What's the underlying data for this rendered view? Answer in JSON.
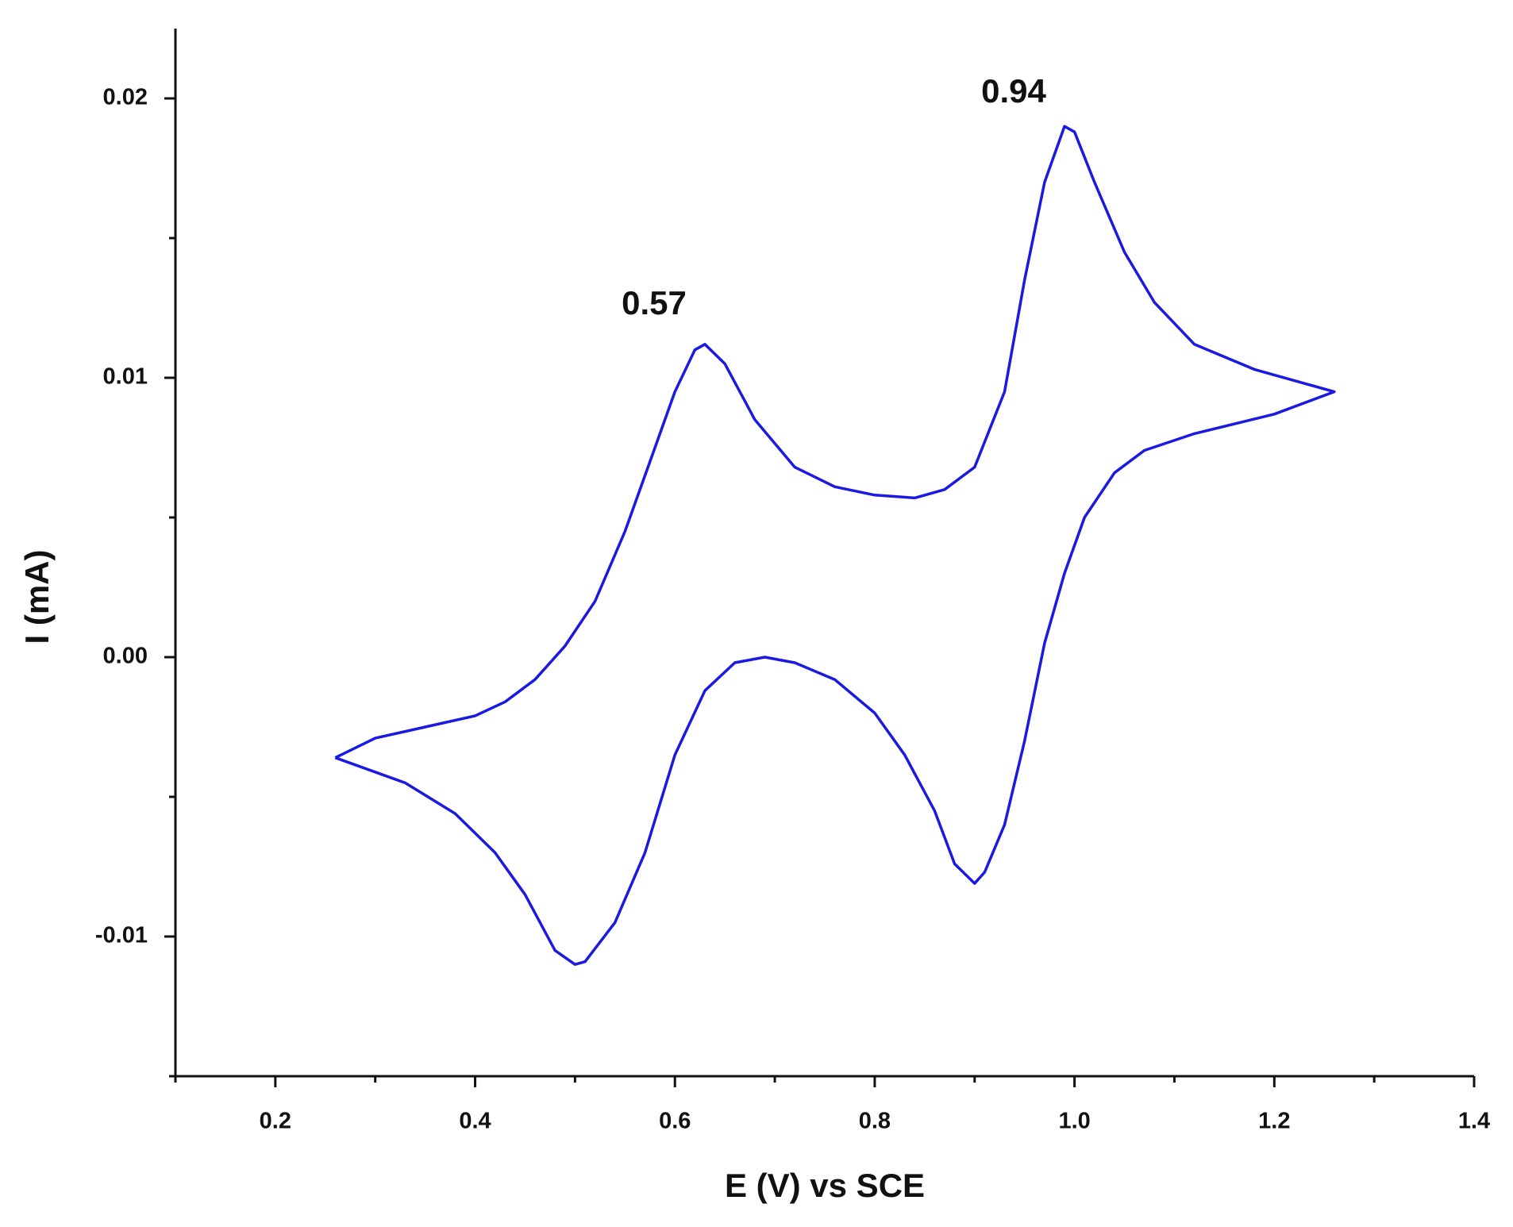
{
  "chart_data": {
    "type": "line",
    "xlabel": "E (V) vs SCE",
    "ylabel": "I (mA)",
    "annotations": [
      "0.57",
      "0.94"
    ],
    "xlim": [
      0.1,
      1.4
    ],
    "ylim": [
      -0.015,
      0.0225
    ],
    "xticks": [
      0.2,
      0.4,
      0.6,
      0.8,
      {
        "value": 1.0,
        "label": "1.0"
      },
      1.2,
      1.4
    ],
    "yticks": [
      -0.01,
      {
        "value": 0,
        "label": "0.00"
      },
      0.01,
      0.02
    ],
    "xminorticks": [
      0.1,
      0.3,
      0.5,
      0.7,
      0.9,
      1.1,
      1.3
    ],
    "yminorticks": [
      -0.015,
      -0.005,
      0.005,
      0.015
    ],
    "series": [
      {
        "color": "#1a1ae0",
        "x": [
          0.26,
          0.3,
          0.35,
          0.4,
          0.43,
          0.46,
          0.49,
          0.52,
          0.55,
          0.58,
          0.6,
          0.62,
          0.63,
          0.65,
          0.68,
          0.72,
          0.76,
          0.8,
          0.84,
          0.87,
          0.9,
          0.93,
          0.95,
          0.97,
          0.99,
          1.0,
          1.02,
          1.05,
          1.08,
          1.12,
          1.18,
          1.26,
          1.2,
          1.12,
          1.07,
          1.04,
          1.01,
          0.99,
          0.97,
          0.95,
          0.93,
          0.91,
          0.9,
          0.88,
          0.86,
          0.83,
          0.8,
          0.76,
          0.72,
          0.69,
          0.66,
          0.63,
          0.6,
          0.57,
          0.54,
          0.51,
          0.5,
          0.48,
          0.45,
          0.42,
          0.38,
          0.33,
          0.26
        ],
        "values": [
          -0.0036,
          -0.0029,
          -0.0025,
          -0.0021,
          -0.0016,
          -0.0008,
          0.0004,
          0.002,
          0.0045,
          0.0075,
          0.0095,
          0.011,
          0.0112,
          0.0105,
          0.0085,
          0.0068,
          0.0061,
          0.0058,
          0.0057,
          0.006,
          0.0068,
          0.0095,
          0.0135,
          0.017,
          0.019,
          0.0188,
          0.017,
          0.0145,
          0.0127,
          0.0112,
          0.0103,
          0.0095,
          0.0087,
          0.008,
          0.0074,
          0.0066,
          0.005,
          0.003,
          0.0005,
          -0.003,
          -0.006,
          -0.0077,
          -0.0081,
          -0.0074,
          -0.0055,
          -0.0035,
          -0.002,
          -0.0008,
          -0.0002,
          0.0,
          -0.0002,
          -0.0012,
          -0.0035,
          -0.007,
          -0.0095,
          -0.0109,
          -0.011,
          -0.0105,
          -0.0085,
          -0.007,
          -0.0056,
          -0.0045,
          -0.0036
        ]
      }
    ]
  }
}
